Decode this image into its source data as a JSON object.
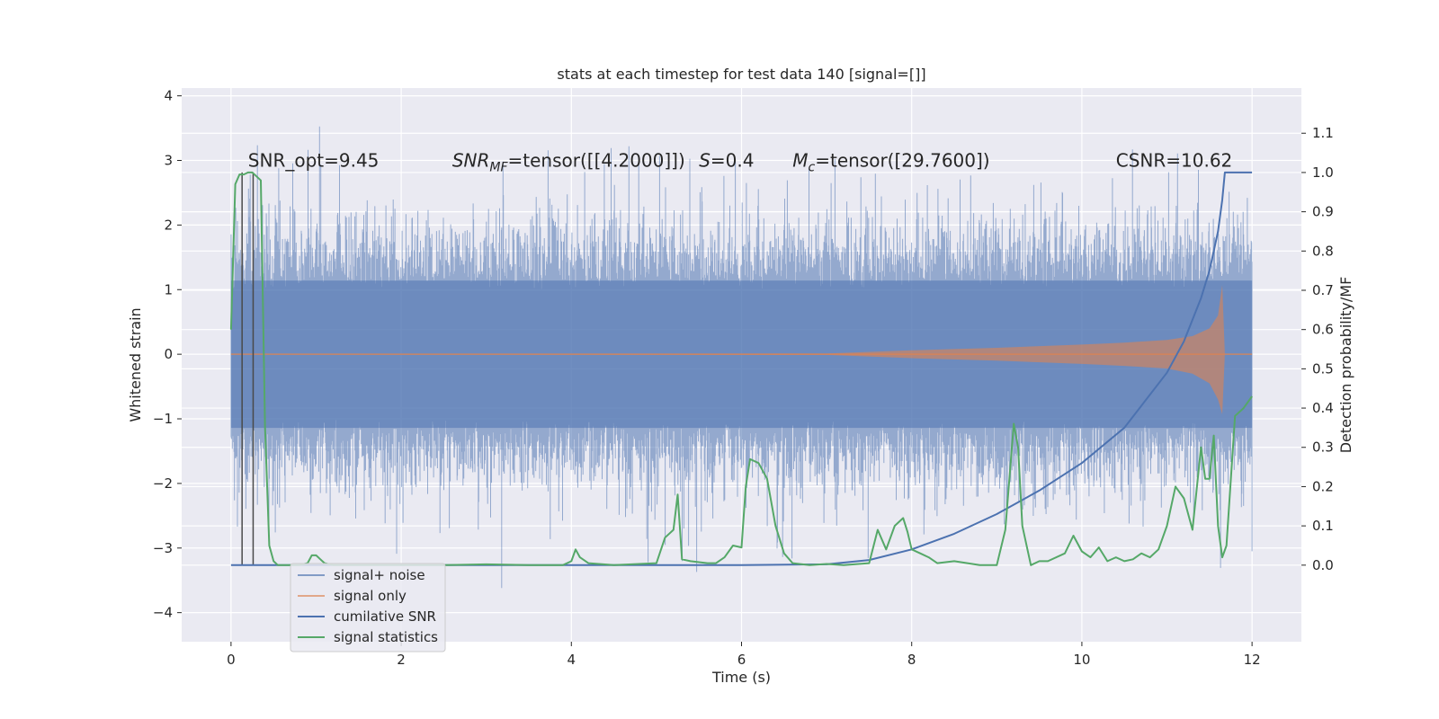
{
  "chart_data": {
    "type": "line",
    "title": "stats at each timestep for test data 140 [signal=[]]",
    "xlabel": "Time (s)",
    "ylabel": "Whitened strain",
    "ylabel_right": "Detection probability/MF",
    "xlim": [
      -0.58,
      12.58
    ],
    "ylim": [
      -4.45,
      4.12
    ],
    "ylim_right": [
      -0.195,
      1.215
    ],
    "xticks": [
      0,
      2,
      4,
      6,
      8,
      10,
      12
    ],
    "yticks": [
      -4,
      -3,
      -2,
      -1,
      0,
      1,
      2,
      3,
      4
    ],
    "yticks_right": [
      0.0,
      0.1,
      0.2,
      0.3,
      0.4,
      0.5,
      0.6,
      0.7,
      0.8,
      0.9,
      1.0,
      1.1
    ],
    "xtick_labels": [
      "0",
      "2",
      "4",
      "6",
      "8",
      "10",
      "12"
    ],
    "ytick_labels": [
      "−4",
      "−3",
      "−2",
      "−1",
      "0",
      "1",
      "2",
      "3",
      "4"
    ],
    "ytick_labels_right": [
      "0.0",
      "0.1",
      "0.2",
      "0.3",
      "0.4",
      "0.5",
      "0.6",
      "0.7",
      "0.8",
      "0.9",
      "1.0",
      "1.1"
    ],
    "grid": true,
    "legend_position": "lower left",
    "annotations": [
      {
        "text": "SNR_opt=9.45",
        "x": 0.2,
        "y": 3.0
      },
      {
        "text": "SNR_MF=tensor([[4.2000]])",
        "x": 2.6,
        "y": 3.0
      },
      {
        "text": "S=0.4",
        "x": 5.5,
        "y": 3.0
      },
      {
        "text": "M_c=tensor([29.7600])",
        "x": 6.6,
        "y": 3.0
      },
      {
        "text": "CSNR=10.62",
        "x": 10.4,
        "y": 3.0
      }
    ],
    "vlines": [
      0.13,
      0.26
    ],
    "series": [
      {
        "name": "signal+ noise",
        "axis": "left",
        "color": "#4c72b0",
        "description": "whitened noisy strain, roughly uniform band about ±1.6 with spikes to about ±3.7",
        "envelope_upper": [
          [
            0.0,
            1.9
          ],
          [
            12.0,
            1.9
          ]
        ],
        "envelope_lower": [
          [
            0.0,
            -1.9
          ],
          [
            12.0,
            -1.9
          ]
        ]
      },
      {
        "name": "signal only",
        "axis": "left",
        "color": "#dd8452",
        "envelope_upper": [
          [
            0.0,
            0.0
          ],
          [
            7.0,
            0.01
          ],
          [
            8.0,
            0.06
          ],
          [
            9.0,
            0.1
          ],
          [
            10.0,
            0.15
          ],
          [
            10.5,
            0.18
          ],
          [
            11.0,
            0.22
          ],
          [
            11.3,
            0.28
          ],
          [
            11.5,
            0.4
          ],
          [
            11.6,
            0.6
          ],
          [
            11.65,
            1.07
          ],
          [
            11.68,
            0.0
          ]
        ],
        "envelope_lower": [
          [
            0.0,
            0.0
          ],
          [
            7.0,
            -0.01
          ],
          [
            8.0,
            -0.06
          ],
          [
            9.0,
            -0.1
          ],
          [
            10.0,
            -0.15
          ],
          [
            10.5,
            -0.18
          ],
          [
            11.0,
            -0.22
          ],
          [
            11.3,
            -0.3
          ],
          [
            11.5,
            -0.45
          ],
          [
            11.6,
            -0.7
          ],
          [
            11.65,
            -0.93
          ],
          [
            11.68,
            0.0
          ]
        ],
        "after_merger": [
          [
            11.68,
            0.0
          ],
          [
            12.0,
            0.0
          ]
        ]
      },
      {
        "name": "cumilative SNR",
        "axis": "right",
        "color": "#4c72b0",
        "x": [
          0.0,
          6.0,
          7.0,
          7.5,
          8.0,
          8.5,
          9.0,
          9.5,
          10.0,
          10.5,
          11.0,
          11.2,
          11.4,
          11.5,
          11.6,
          11.65,
          11.68,
          12.0
        ],
        "y": [
          0.0,
          0.0,
          0.002,
          0.013,
          0.04,
          0.08,
          0.13,
          0.19,
          0.26,
          0.35,
          0.49,
          0.57,
          0.68,
          0.75,
          0.85,
          0.93,
          1.0,
          1.0
        ]
      },
      {
        "name": "signal statistics",
        "axis": "right",
        "color": "#55a868",
        "x": [
          0.0,
          0.05,
          0.1,
          0.15,
          0.2,
          0.25,
          0.3,
          0.35,
          0.4,
          0.45,
          0.5,
          0.55,
          0.6,
          0.7,
          0.8,
          0.9,
          0.95,
          1.0,
          1.05,
          1.1,
          1.2,
          1.3,
          1.5,
          2.0,
          2.5,
          3.0,
          3.5,
          3.9,
          4.0,
          4.05,
          4.1,
          4.2,
          4.5,
          5.0,
          5.1,
          5.2,
          5.25,
          5.3,
          5.4,
          5.6,
          5.7,
          5.8,
          5.9,
          6.0,
          6.05,
          6.1,
          6.2,
          6.3,
          6.4,
          6.5,
          6.6,
          6.8,
          7.0,
          7.2,
          7.5,
          7.6,
          7.7,
          7.8,
          7.9,
          7.95,
          8.0,
          8.1,
          8.2,
          8.3,
          8.5,
          8.8,
          9.0,
          9.1,
          9.2,
          9.25,
          9.3,
          9.4,
          9.5,
          9.6,
          9.8,
          9.9,
          10.0,
          10.1,
          10.2,
          10.3,
          10.4,
          10.5,
          10.6,
          10.7,
          10.8,
          10.9,
          11.0,
          11.1,
          11.2,
          11.3,
          11.4,
          11.45,
          11.5,
          11.55,
          11.6,
          11.65,
          11.7,
          11.8,
          11.9,
          12.0
        ],
        "y": [
          0.6,
          0.97,
          0.995,
          0.995,
          1.0,
          1.0,
          0.99,
          0.98,
          0.35,
          0.05,
          0.01,
          0.0,
          0.0,
          0.0,
          0.0,
          0.005,
          0.025,
          0.025,
          0.015,
          0.005,
          0.0,
          0.0,
          0.0,
          0.0,
          0.0,
          0.002,
          0.0,
          0.0,
          0.01,
          0.04,
          0.02,
          0.005,
          0.0,
          0.005,
          0.07,
          0.09,
          0.18,
          0.015,
          0.01,
          0.005,
          0.005,
          0.02,
          0.05,
          0.045,
          0.2,
          0.27,
          0.26,
          0.22,
          0.1,
          0.03,
          0.005,
          0.0,
          0.003,
          0.0,
          0.005,
          0.09,
          0.04,
          0.1,
          0.12,
          0.085,
          0.04,
          0.03,
          0.02,
          0.005,
          0.01,
          0.0,
          0.0,
          0.09,
          0.36,
          0.3,
          0.1,
          0.0,
          0.01,
          0.01,
          0.03,
          0.075,
          0.035,
          0.02,
          0.045,
          0.01,
          0.02,
          0.01,
          0.015,
          0.03,
          0.02,
          0.04,
          0.1,
          0.2,
          0.17,
          0.09,
          0.3,
          0.22,
          0.22,
          0.33,
          0.1,
          0.02,
          0.05,
          0.38,
          0.4,
          0.43
        ]
      }
    ]
  }
}
